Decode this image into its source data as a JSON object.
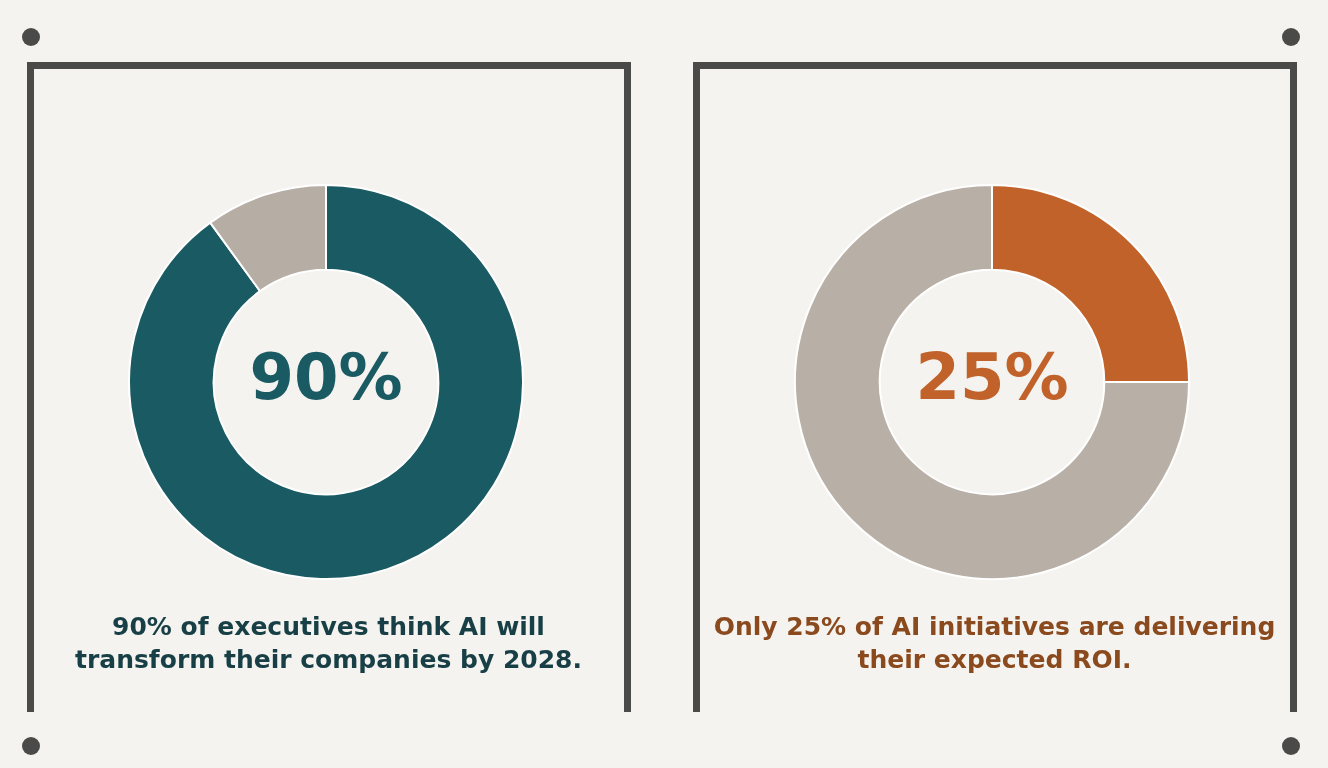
{
  "chart_data": [
    {
      "type": "donut",
      "title": "90% of executives think AI will transform their companies by 2028.",
      "categories": [
        null,
        null
      ],
      "values": [
        90,
        10
      ],
      "colors": [
        "#1a5a63",
        "#b6ada4"
      ],
      "value_labels": [
        "90%",
        null
      ]
    },
    {
      "type": "donut",
      "title": "Only 25% of AI initiatives are delivering their expected ROI.",
      "categories": [
        null,
        null
      ],
      "values": [
        25,
        75
      ],
      "colors": [
        "#c0622a",
        "#b8afa6"
      ],
      "value_labels": [
        "25%",
        null
      ]
    }
  ]
}
